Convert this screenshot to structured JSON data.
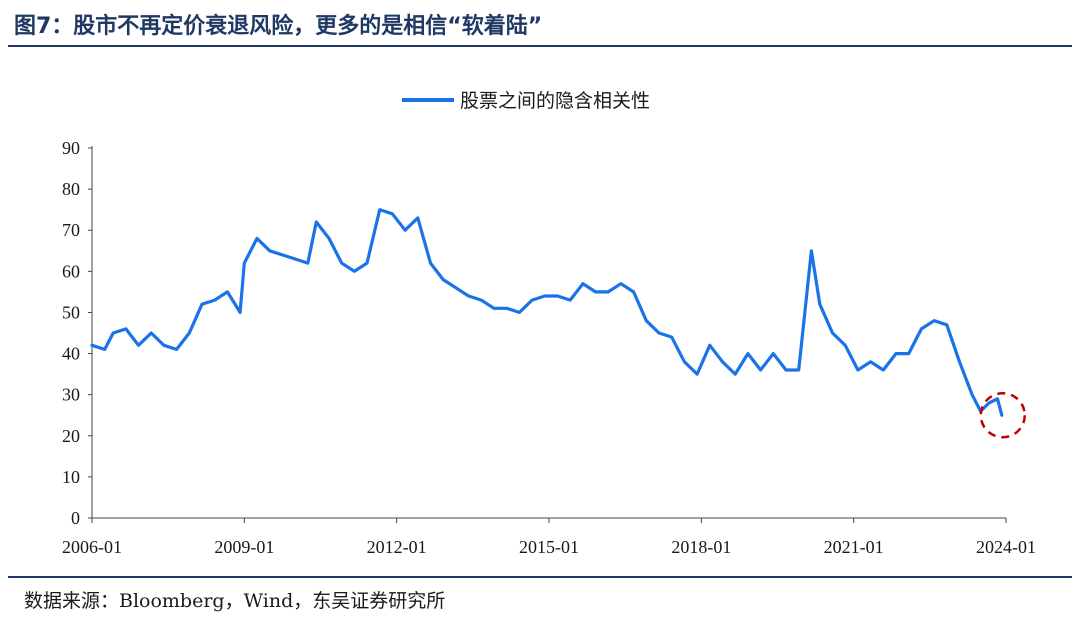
{
  "figure": {
    "title": "图7：股市不再定价衰退风险，更多的是相信“软着陆”",
    "source": "数据来源：Bloomberg，Wind，东吴证券研究所"
  },
  "colors": {
    "title": "#1f3864",
    "series": "#1a73e8",
    "highlight_circle": "#c00000"
  },
  "chart_data": {
    "type": "line",
    "title": "",
    "xlabel": "",
    "ylabel": "",
    "ylim": [
      0,
      90
    ],
    "yticks": [
      0,
      10,
      20,
      30,
      40,
      50,
      60,
      70,
      80,
      90
    ],
    "xlim": [
      "2006-01",
      "2024-01"
    ],
    "xticks": [
      "2006-01",
      "2009-01",
      "2012-01",
      "2015-01",
      "2018-01",
      "2021-01",
      "2024-01"
    ],
    "legend": {
      "position": "top-center"
    },
    "grid": false,
    "annotation": {
      "type": "dashed-circle",
      "at": "2023-12",
      "value": 25
    },
    "series": [
      {
        "name": "股票之间的隐含相关性",
        "points": [
          [
            "2006-01",
            42
          ],
          [
            "2006-04",
            41
          ],
          [
            "2006-06",
            45
          ],
          [
            "2006-09",
            46
          ],
          [
            "2006-12",
            42
          ],
          [
            "2007-03",
            45
          ],
          [
            "2007-06",
            42
          ],
          [
            "2007-09",
            41
          ],
          [
            "2007-12",
            45
          ],
          [
            "2008-03",
            52
          ],
          [
            "2008-06",
            53
          ],
          [
            "2008-09",
            55
          ],
          [
            "2008-12",
            50
          ],
          [
            "2009-01",
            62
          ],
          [
            "2009-04",
            68
          ],
          [
            "2009-07",
            65
          ],
          [
            "2009-10",
            64
          ],
          [
            "2010-01",
            63
          ],
          [
            "2010-04",
            62
          ],
          [
            "2010-06",
            72
          ],
          [
            "2010-09",
            68
          ],
          [
            "2010-12",
            62
          ],
          [
            "2011-03",
            60
          ],
          [
            "2011-06",
            62
          ],
          [
            "2011-09",
            75
          ],
          [
            "2011-12",
            74
          ],
          [
            "2012-03",
            70
          ],
          [
            "2012-06",
            73
          ],
          [
            "2012-09",
            62
          ],
          [
            "2012-12",
            58
          ],
          [
            "2013-03",
            56
          ],
          [
            "2013-06",
            54
          ],
          [
            "2013-09",
            53
          ],
          [
            "2013-12",
            51
          ],
          [
            "2014-03",
            51
          ],
          [
            "2014-06",
            50
          ],
          [
            "2014-09",
            53
          ],
          [
            "2014-12",
            54
          ],
          [
            "2015-03",
            54
          ],
          [
            "2015-06",
            53
          ],
          [
            "2015-09",
            57
          ],
          [
            "2015-12",
            55
          ],
          [
            "2016-03",
            55
          ],
          [
            "2016-06",
            57
          ],
          [
            "2016-09",
            55
          ],
          [
            "2016-12",
            48
          ],
          [
            "2017-03",
            45
          ],
          [
            "2017-06",
            44
          ],
          [
            "2017-09",
            38
          ],
          [
            "2017-12",
            35
          ],
          [
            "2018-03",
            42
          ],
          [
            "2018-06",
            38
          ],
          [
            "2018-09",
            35
          ],
          [
            "2018-12",
            40
          ],
          [
            "2019-03",
            36
          ],
          [
            "2019-06",
            40
          ],
          [
            "2019-09",
            36
          ],
          [
            "2019-12",
            36
          ],
          [
            "2020-03",
            65
          ],
          [
            "2020-05",
            52
          ],
          [
            "2020-08",
            45
          ],
          [
            "2020-11",
            42
          ],
          [
            "2021-02",
            36
          ],
          [
            "2021-05",
            38
          ],
          [
            "2021-08",
            36
          ],
          [
            "2021-11",
            40
          ],
          [
            "2022-02",
            40
          ],
          [
            "2022-05",
            46
          ],
          [
            "2022-08",
            48
          ],
          [
            "2022-11",
            47
          ],
          [
            "2023-02",
            38
          ],
          [
            "2023-05",
            30
          ],
          [
            "2023-07",
            26
          ],
          [
            "2023-09",
            28
          ],
          [
            "2023-11",
            29
          ],
          [
            "2023-12",
            25
          ]
        ]
      }
    ]
  }
}
